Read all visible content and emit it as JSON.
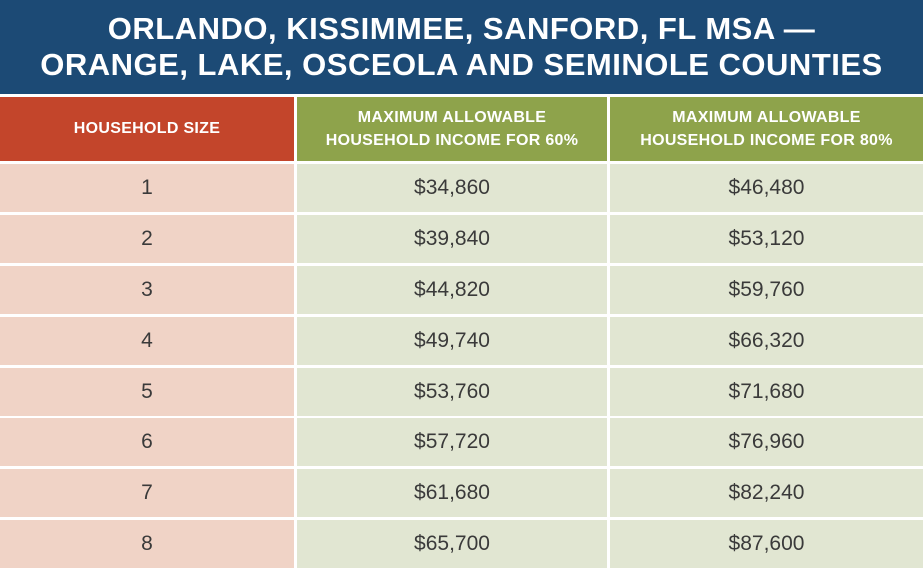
{
  "title": {
    "line1": "ORLANDO, KISSIMMEE, SANFORD, FL MSA —",
    "line2": "ORANGE, LAKE, OSCEOLA AND SEMINOLE COUNTIES"
  },
  "table": {
    "headers": {
      "household_size": "HOUSEHOLD SIZE",
      "income_60_line1": "MAXIMUM ALLOWABLE",
      "income_60_line2": "HOUSEHOLD INCOME FOR 60%",
      "income_80_line1": "MAXIMUM ALLOWABLE",
      "income_80_line2": "HOUSEHOLD INCOME FOR 80%"
    },
    "rows": [
      {
        "size": "1",
        "income_60": "$34,860",
        "income_80": "$46,480"
      },
      {
        "size": "2",
        "income_60": "$39,840",
        "income_80": "$53,120"
      },
      {
        "size": "3",
        "income_60": "$44,820",
        "income_80": "$59,760"
      },
      {
        "size": "4",
        "income_60": "$49,740",
        "income_80": "$66,320"
      },
      {
        "size": "5",
        "income_60": "$53,760",
        "income_80": "$71,680"
      },
      {
        "size": "6",
        "income_60": "$57,720",
        "income_80": "$76,960"
      },
      {
        "size": "7",
        "income_60": "$61,680",
        "income_80": "$82,240"
      },
      {
        "size": "8",
        "income_60": "$65,700",
        "income_80": "$87,600"
      }
    ]
  },
  "colors": {
    "title_bg": "#1c4a75",
    "size_header_bg": "#c3452b",
    "income_header_bg": "#8ea34b",
    "size_cell_bg": "#f0d3c6",
    "income_cell_bg": "#e1e6d2"
  }
}
